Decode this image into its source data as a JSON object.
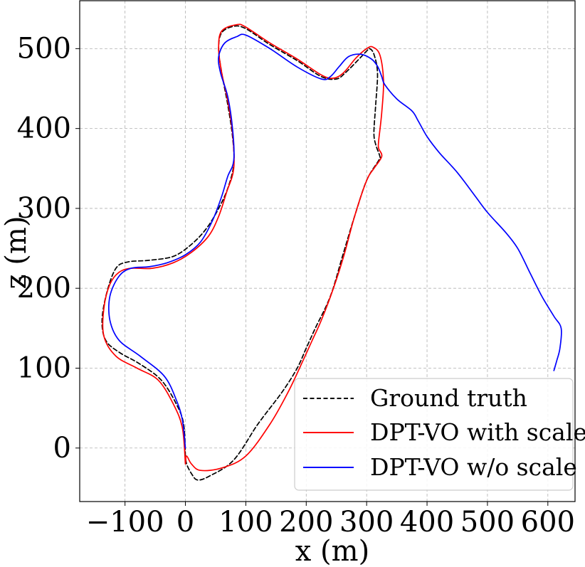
{
  "chart_data": {
    "type": "line",
    "xlabel": "x (m)",
    "ylabel": "z (m)",
    "xlim": [
      -175,
      645
    ],
    "ylim": [
      -67,
      560
    ],
    "grid": true,
    "legend_position": "bottom-right",
    "xticks": [
      -100,
      0,
      100,
      200,
      300,
      400,
      500,
      600
    ],
    "xtick_labels": [
      "−100",
      "0",
      "100",
      "200",
      "300",
      "400",
      "500",
      "600"
    ],
    "yticks": [
      0,
      100,
      200,
      300,
      400,
      500
    ],
    "ytick_labels": [
      "0",
      "100",
      "200",
      "300",
      "400",
      "500"
    ],
    "series": [
      {
        "name": "Ground truth",
        "color": "#000000",
        "dashed": true,
        "x": [
          0,
          -3,
          -15,
          -40,
          -75,
          -110,
          -132,
          -138,
          -130,
          -115,
          -95,
          -60,
          -20,
          10,
          35,
          55,
          70,
          80,
          78,
          70,
          60,
          55,
          60,
          80,
          100,
          140,
          185,
          225,
          250,
          265,
          285,
          300,
          305,
          312,
          318,
          315,
          312,
          315,
          322,
          320,
          300,
          280,
          260,
          240,
          215,
          200,
          185,
          160,
          120,
          80,
          40,
          20,
          10,
          2,
          0
        ],
        "y": [
          -10,
          30,
          55,
          85,
          105,
          120,
          135,
          160,
          195,
          225,
          233,
          235,
          240,
          255,
          275,
          300,
          325,
          355,
          390,
          430,
          470,
          500,
          520,
          528,
          525,
          505,
          485,
          465,
          462,
          470,
          485,
          497,
          500,
          493,
          470,
          430,
          395,
          380,
          365,
          360,
          335,
          290,
          240,
          190,
          150,
          125,
          100,
          70,
          30,
          -15,
          -35,
          -40,
          -32,
          -20,
          -10
        ]
      },
      {
        "name": "DPT-VO with scale",
        "color": "#ff0000",
        "dashed": false,
        "x": [
          0,
          -5,
          -20,
          -45,
          -80,
          -115,
          -135,
          -135,
          -125,
          -110,
          -90,
          -55,
          -20,
          10,
          38,
          55,
          68,
          80,
          78,
          70,
          60,
          55,
          60,
          85,
          100,
          140,
          185,
          225,
          245,
          262,
          282,
          300,
          310,
          322,
          328,
          325,
          320,
          320,
          325,
          312,
          300,
          280,
          262,
          245,
          225,
          210,
          195,
          170,
          140,
          100,
          60,
          25,
          10,
          2,
          0
        ],
        "y": [
          -20,
          25,
          55,
          85,
          100,
          115,
          140,
          175,
          205,
          220,
          225,
          225,
          232,
          245,
          265,
          290,
          320,
          350,
          395,
          435,
          470,
          500,
          522,
          530,
          527,
          507,
          487,
          467,
          463,
          470,
          488,
          500,
          502,
          492,
          460,
          420,
          385,
          375,
          365,
          350,
          335,
          290,
          240,
          200,
          160,
          135,
          110,
          70,
          30,
          -10,
          -25,
          -28,
          -20,
          -10,
          -20
        ]
      },
      {
        "name": "DPT-VO w/o scale",
        "color": "#0000ff",
        "dashed": false,
        "x": [
          0,
          -5,
          -15,
          -35,
          -75,
          -110,
          -125,
          -125,
          -110,
          -90,
          -60,
          -30,
          0,
          25,
          45,
          60,
          70,
          80,
          78,
          70,
          58,
          55,
          65,
          85,
          100,
          140,
          185,
          225,
          240,
          255,
          270,
          290,
          308,
          318,
          325,
          330,
          350,
          375,
          385,
          400,
          420,
          450,
          480,
          500,
          530,
          550,
          570,
          590,
          610,
          622,
          620,
          615,
          610
        ],
        "y": [
          0,
          35,
          60,
          90,
          115,
          135,
          160,
          190,
          215,
          225,
          227,
          232,
          242,
          258,
          285,
          315,
          340,
          360,
          400,
          440,
          470,
          490,
          507,
          515,
          517,
          500,
          477,
          462,
          465,
          478,
          490,
          493,
          487,
          478,
          465,
          455,
          437,
          422,
          410,
          390,
          370,
          345,
          315,
          295,
          270,
          250,
          220,
          190,
          165,
          150,
          125,
          110,
          97
        ]
      }
    ]
  }
}
